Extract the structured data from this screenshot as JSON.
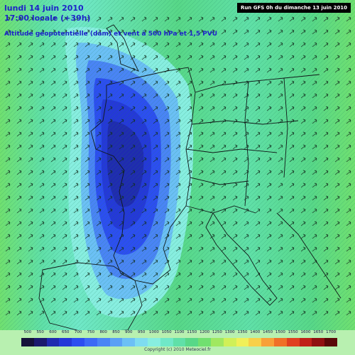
{
  "header": {
    "title_line1": "lundi 14 juin 2010",
    "title_line2": "17:00 locale (+39h)",
    "subtitle": "Altitude géopotentielle (dam) et vent à 500 hPa et 1,5 PVU",
    "run_info": "Run GFS 0h du dimanche 13 juin 2010"
  },
  "legend": {
    "labels": [
      "500",
      "550",
      "600",
      "650",
      "700",
      "750",
      "800",
      "850",
      "900",
      "950",
      "1000",
      "1050",
      "1100",
      "1150",
      "1200",
      "1250",
      "1300",
      "1350",
      "1400",
      "1450",
      "1500",
      "1550",
      "1600",
      "1650",
      "1700"
    ],
    "colors": [
      "#14123a",
      "#1a1a6e",
      "#1f2bb0",
      "#2438d8",
      "#2c4ef0",
      "#3c6af5",
      "#4a84f5",
      "#5aa0f5",
      "#6cc0f5",
      "#7edcf0",
      "#88eee0",
      "#70e8c8",
      "#60e0a8",
      "#58d888",
      "#70e070",
      "#a0e860",
      "#d0f058",
      "#f0f058",
      "#f8d048",
      "#f8a038",
      "#f07028",
      "#e04020",
      "#c02018",
      "#901010",
      "#5a0808"
    ],
    "copyright": "Copyright (c) 2010 Meteociel.fr"
  }
}
